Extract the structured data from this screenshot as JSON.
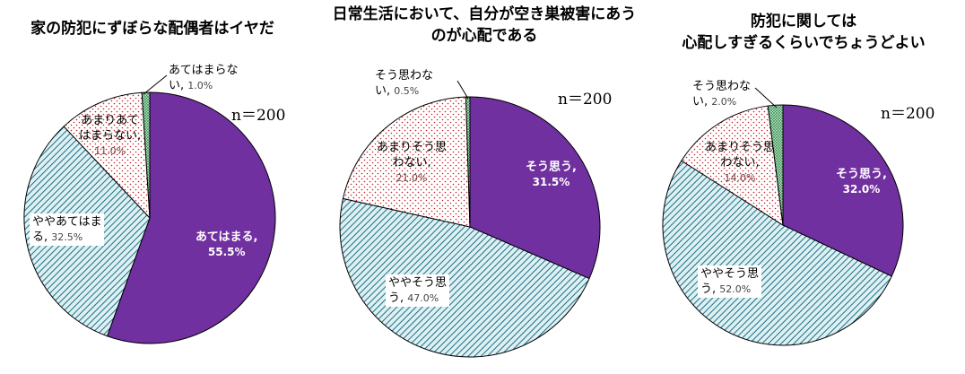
{
  "colors": {
    "agree": "#7030A0",
    "somewhat_agree_fg": "#1F6F7F",
    "somewhat_agree_bg": "#DDF0F4",
    "somewhat_disagree_dot": "#C0202A",
    "disagree_fg": "#1E7A3A",
    "disagree_bg": "#C8EED2",
    "edge": "#000000"
  },
  "chart_data": [
    {
      "type": "pie",
      "title_lines": [
        "家の防犯にずぼらな配偶者はイヤだ"
      ],
      "n_label": "n＝200",
      "slices": [
        {
          "key": "agree",
          "label_lines": [
            "あてはまる,"
          ],
          "pct_text": "55.5%",
          "value": 55.5
        },
        {
          "key": "somewhat_agree",
          "label_lines": [
            "ややあてはま",
            "る,"
          ],
          "pct_text": "32.5%",
          "value": 32.5
        },
        {
          "key": "somewhat_disagree",
          "label_lines": [
            "あまりあて",
            "はまらない,"
          ],
          "pct_text": "11.0%",
          "value": 11.0
        },
        {
          "key": "disagree",
          "label_lines": [
            "あてはまらな",
            "い,"
          ],
          "pct_text": "1.0%",
          "value": 1.0
        }
      ]
    },
    {
      "type": "pie",
      "title_lines": [
        "日常生活において、自分が空き巣被害にあう",
        "のが心配である"
      ],
      "n_label": "n＝200",
      "slices": [
        {
          "key": "agree",
          "label_lines": [
            "そう思う,"
          ],
          "pct_text": "31.5%",
          "value": 31.5
        },
        {
          "key": "somewhat_agree",
          "label_lines": [
            "ややそう思",
            "う,"
          ],
          "pct_text": "47.0%",
          "value": 47.0
        },
        {
          "key": "somewhat_disagree",
          "label_lines": [
            "あまりそう思",
            "わない,"
          ],
          "pct_text": "21.0%",
          "value": 21.0
        },
        {
          "key": "disagree",
          "label_lines": [
            "そう思わな",
            "い,"
          ],
          "pct_text": "0.5%",
          "value": 0.5
        }
      ]
    },
    {
      "type": "pie",
      "title_lines": [
        "防犯に関しては",
        "心配しすぎるくらいでちょうどよい"
      ],
      "n_label": "n＝200",
      "slices": [
        {
          "key": "agree",
          "label_lines": [
            "そう思う,"
          ],
          "pct_text": "32.0%",
          "value": 32.0
        },
        {
          "key": "somewhat_agree",
          "label_lines": [
            "ややそう思",
            "う,"
          ],
          "pct_text": "52.0%",
          "value": 52.0
        },
        {
          "key": "somewhat_disagree",
          "label_lines": [
            "あまりそう思",
            "わない,"
          ],
          "pct_text": "14.0%",
          "value": 14.0
        },
        {
          "key": "disagree",
          "label_lines": [
            "そう思わな",
            "い,"
          ],
          "pct_text": "2.0%",
          "value": 2.0
        }
      ]
    }
  ]
}
